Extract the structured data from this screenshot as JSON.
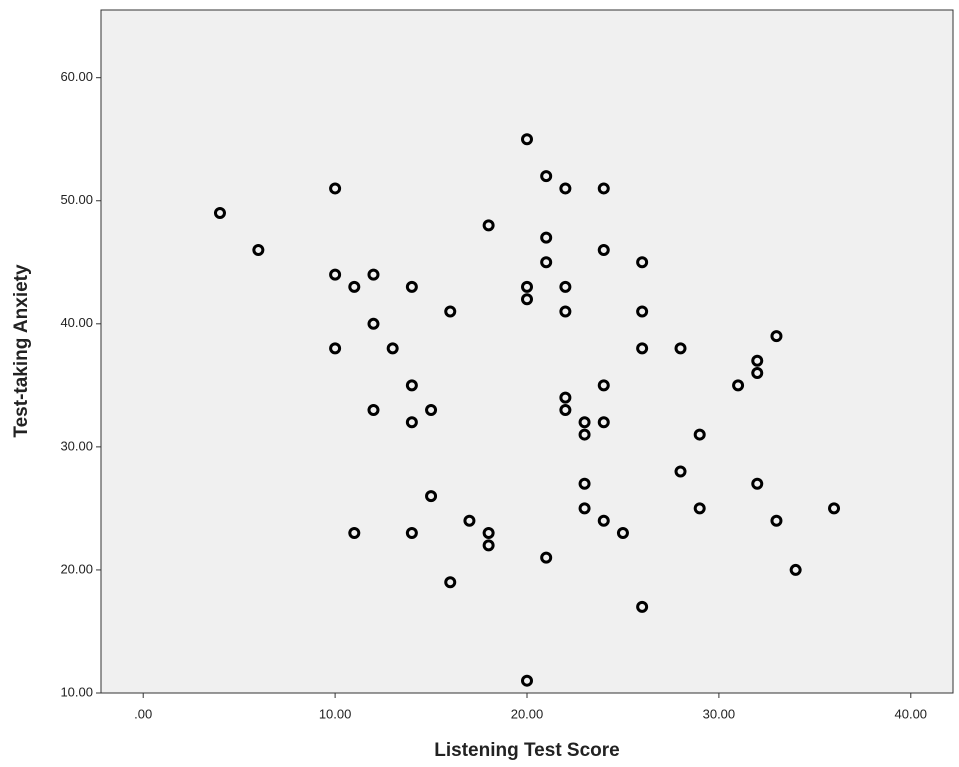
{
  "chart_data": {
    "type": "scatter",
    "x_label": "Listening Test Score",
    "y_label": "Test-taking Anxiety",
    "x": [
      4,
      6,
      10,
      10,
      10,
      11,
      11,
      12,
      12,
      12,
      13,
      14,
      14,
      14,
      14,
      15,
      15,
      16,
      16,
      17,
      18,
      18,
      18,
      20,
      20,
      20,
      20,
      21,
      21,
      21,
      21,
      22,
      22,
      22,
      22,
      22,
      23,
      23,
      23,
      23,
      24,
      24,
      24,
      24,
      24,
      25,
      26,
      26,
      26,
      26,
      28,
      28,
      29,
      29,
      31,
      32,
      32,
      32,
      33,
      33,
      34,
      36
    ],
    "values": [
      49,
      46,
      51,
      44,
      38,
      43,
      23,
      44,
      40,
      33,
      38,
      43,
      35,
      32,
      23,
      33,
      26,
      41,
      19,
      24,
      48,
      23,
      22,
      55,
      43,
      42,
      11,
      52,
      47,
      45,
      21,
      51,
      43,
      41,
      34,
      33,
      32,
      31,
      27,
      25,
      51,
      46,
      35,
      32,
      24,
      23,
      45,
      41,
      38,
      17,
      38,
      28,
      31,
      25,
      35,
      37,
      36,
      27,
      39,
      24,
      20,
      25
    ],
    "color": "#000000",
    "xlim": [
      -2.2,
      42.2
    ],
    "ylim": [
      10,
      65.5
    ],
    "xticks": [
      {
        "value": 0,
        "label": ".00"
      },
      {
        "value": 10,
        "label": "10.00"
      },
      {
        "value": 20,
        "label": "20.00"
      },
      {
        "value": 30,
        "label": "30.00"
      },
      {
        "value": 40,
        "label": "40.00"
      }
    ],
    "yticks": [
      {
        "value": 10,
        "label": "10.00"
      },
      {
        "value": 20,
        "label": "20.00"
      },
      {
        "value": 30,
        "label": "30.00"
      },
      {
        "value": 40,
        "label": "40.00"
      },
      {
        "value": 50,
        "label": "50.00"
      },
      {
        "value": 60,
        "label": "60.00"
      }
    ]
  }
}
